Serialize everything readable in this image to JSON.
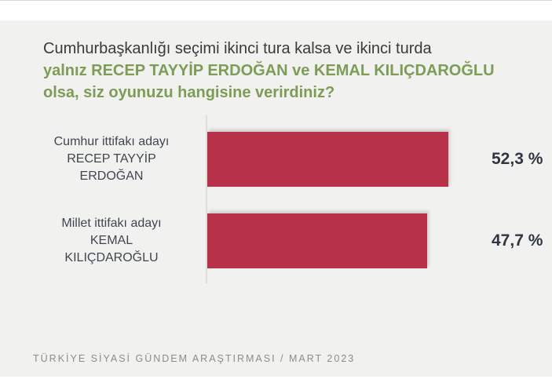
{
  "title": {
    "line1": "Cumhurbaşkanlığı seçimi ikinci tura kalsa ve ikinci turda",
    "line2": "yalnız RECEP TAYYİP ERDOĞAN ve KEMAL KILIÇDAROĞLU",
    "line3": "olsa, siz oyunuzu hangisine verirdiniz?"
  },
  "chart_data": {
    "type": "bar",
    "orientation": "horizontal",
    "title": "Cumhurbaşkanlığı seçimi ikinci tura kalsa ve ikinci turda yalnız RECEP TAYYİP ERDOĞAN ve KEMAL KILIÇDAROĞLU olsa, siz oyunuzu hangisine verirdiniz?",
    "categories": [
      "Cumhur ittifakı adayı RECEP TAYYİP ERDOĞAN",
      "Millet ittifakı adayı KEMAL KILIÇDAROĞLU"
    ],
    "values": [
      52.3,
      47.7
    ],
    "value_labels": [
      "52,3 %",
      "47,7 %"
    ],
    "xlim": [
      0,
      60
    ],
    "grid": false,
    "legend": false,
    "bar_color": "#b73149",
    "bars": [
      {
        "label_lines": [
          "Cumhur ittifakı adayı",
          "RECEP TAYYİP",
          "ERDOĞAN"
        ],
        "value": 52.3,
        "value_label": "52,3 %"
      },
      {
        "label_lines": [
          "Millet ittifakı adayı",
          "KEMAL",
          "KILIÇDAROĞLU"
        ],
        "value": 47.7,
        "value_label": "47,7 %"
      }
    ]
  },
  "footer": {
    "text": "TÜRKİYE SİYASİ GÜNDEM ARAŞTIRMASI  / MART 2023"
  },
  "colors": {
    "background": "#f1f1f0",
    "strip": "#ffffff",
    "bar": "#b73149",
    "title_primary": "#3a3a3a",
    "title_accent": "#7d9c55",
    "category_label": "#404650",
    "value_label": "#2f3542",
    "axis_line": "#dededc",
    "footer_text": "#8c8c8c"
  }
}
